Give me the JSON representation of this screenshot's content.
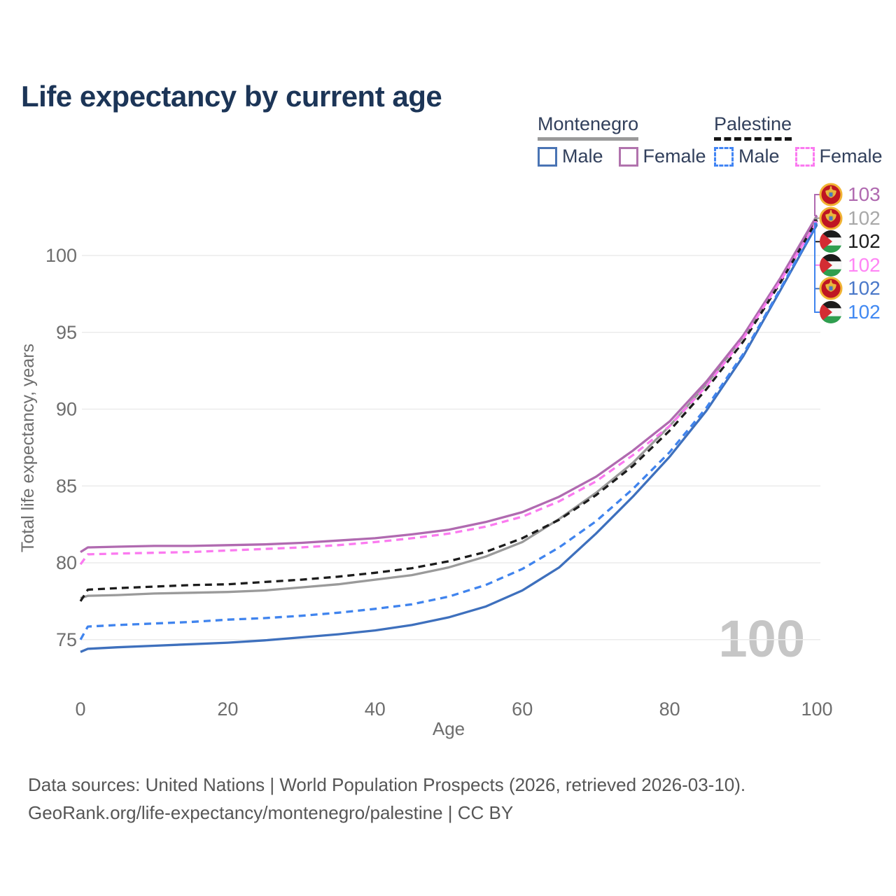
{
  "header": {
    "title": "Life expectancy by current age"
  },
  "legend": {
    "groups": [
      {
        "country": "Montenegro",
        "underline": "solid",
        "underline_color": "#9a9a9a",
        "items": [
          {
            "label": "Male",
            "color": "#3e70bd",
            "dash": false
          },
          {
            "label": "Female",
            "color": "#b06ab0",
            "dash": false
          }
        ]
      },
      {
        "country": "Palestine",
        "underline": "dashed",
        "underline_color": "#161616",
        "items": [
          {
            "label": "Male",
            "color": "#4084ee",
            "dash": true
          },
          {
            "label": "Female",
            "color": "#fb7af0",
            "dash": true
          }
        ]
      }
    ]
  },
  "chart_data": {
    "type": "line",
    "title": "Life expectancy by current age",
    "xlabel": "Age",
    "ylabel": "Total life expectancy, years",
    "xlim": [
      0,
      100
    ],
    "ylim": [
      73,
      103.5
    ],
    "x_ticks": [
      0,
      20,
      40,
      60,
      80,
      100
    ],
    "y_ticks": [
      75,
      80,
      85,
      90,
      95,
      100
    ],
    "grid": "horizontal",
    "gridline_color": "#ebebeb",
    "tick_color": "#6e6e6e",
    "watermark": "100",
    "watermark_color": "#c6c6c6",
    "ages": [
      0,
      1,
      5,
      10,
      15,
      20,
      25,
      30,
      35,
      40,
      45,
      50,
      55,
      60,
      65,
      70,
      75,
      80,
      85,
      90,
      95,
      100
    ],
    "series": [
      {
        "id": "mne_m",
        "name": "Montenegro Male",
        "country": "Montenegro",
        "sex": "Male",
        "color": "#3e70bd",
        "dash": false,
        "values": [
          74.2,
          74.4,
          74.5,
          74.6,
          74.7,
          74.8,
          74.95,
          75.15,
          75.35,
          75.6,
          75.95,
          76.45,
          77.15,
          78.2,
          79.7,
          81.9,
          84.3,
          86.9,
          89.9,
          93.45,
          97.7,
          102.0
        ]
      },
      {
        "id": "pse_m",
        "name": "Palestine Male",
        "country": "Palestine",
        "sex": "Male",
        "color": "#4084ee",
        "dash": true,
        "values": [
          75.0,
          75.85,
          75.95,
          76.05,
          76.15,
          76.3,
          76.4,
          76.55,
          76.75,
          77.0,
          77.3,
          77.8,
          78.55,
          79.6,
          81.0,
          82.7,
          84.8,
          87.2,
          90.1,
          93.6,
          97.8,
          102.1
        ]
      },
      {
        "id": "mne_t",
        "name": "Montenegro",
        "country": "Montenegro",
        "sex": "Both",
        "color": "#9a9a9a",
        "dash": false,
        "values": [
          77.7,
          77.85,
          77.9,
          78.0,
          78.05,
          78.1,
          78.2,
          78.4,
          78.6,
          78.9,
          79.2,
          79.7,
          80.4,
          81.35,
          82.85,
          84.55,
          86.5,
          88.9,
          91.6,
          94.7,
          98.4,
          102.4
        ]
      },
      {
        "id": "pse_t",
        "name": "Palestine",
        "country": "Palestine",
        "sex": "Both",
        "color": "#1c1c1c",
        "dash": true,
        "values": [
          77.5,
          78.25,
          78.35,
          78.45,
          78.55,
          78.6,
          78.75,
          78.9,
          79.1,
          79.35,
          79.65,
          80.1,
          80.7,
          81.6,
          82.8,
          84.4,
          86.3,
          88.6,
          91.3,
          94.4,
          98.2,
          102.3
        ]
      },
      {
        "id": "mne_f",
        "name": "Montenegro Female",
        "country": "Montenegro",
        "sex": "Female",
        "color": "#b06ab0",
        "dash": false,
        "values": [
          80.7,
          81.0,
          81.05,
          81.1,
          81.1,
          81.15,
          81.2,
          81.3,
          81.45,
          81.6,
          81.85,
          82.15,
          82.65,
          83.3,
          84.3,
          85.6,
          87.3,
          89.2,
          91.8,
          94.8,
          98.5,
          102.6
        ]
      },
      {
        "id": "pse_f",
        "name": "Palestine Female",
        "country": "Palestine",
        "sex": "Female",
        "color": "#fb7af0",
        "dash": true,
        "values": [
          79.9,
          80.55,
          80.6,
          80.65,
          80.7,
          80.8,
          80.9,
          81.0,
          81.15,
          81.35,
          81.6,
          81.9,
          82.35,
          83.0,
          84.0,
          85.3,
          87.0,
          88.9,
          91.5,
          94.6,
          98.3,
          102.2
        ]
      }
    ],
    "end_labels": [
      {
        "series": "mne_f",
        "flag": "me",
        "value": "103",
        "color": "#b06ab0"
      },
      {
        "series": "mne_t",
        "flag": "me",
        "value": "102",
        "color": "#a8a8a8"
      },
      {
        "series": "pse_t",
        "flag": "ps",
        "value": "102",
        "color": "#1c1c1c"
      },
      {
        "series": "pse_f",
        "flag": "ps",
        "value": "102",
        "color": "#ff85f5"
      },
      {
        "series": "mne_m",
        "flag": "me",
        "value": "102",
        "color": "#4a78c9"
      },
      {
        "series": "pse_m",
        "flag": "ps",
        "value": "102",
        "color": "#4189f2"
      }
    ],
    "legend_position": "top-right"
  },
  "footer": {
    "line1": "Data sources: United Nations | World Population Prospects (2026, retrieved 2026-03-10).",
    "line2": "GeoRank.org/life-expectancy/montenegro/palestine | CC BY"
  }
}
